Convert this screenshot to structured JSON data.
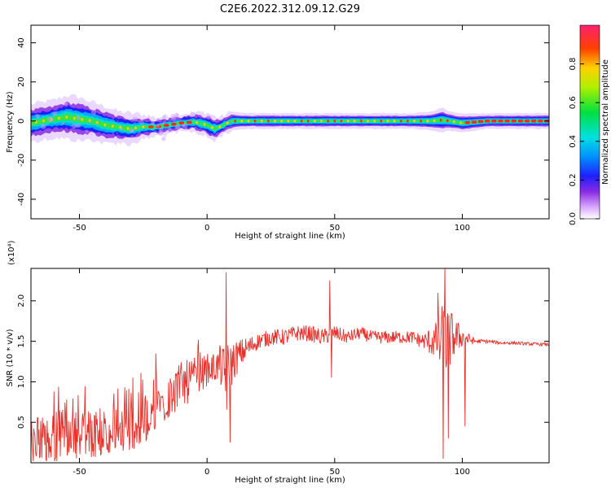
{
  "title": "C2E6.2022.312.09.12.G29",
  "chart_data": [
    {
      "type": "heatmap",
      "xlabel": "Height of straight line (km)",
      "ylabel": "Frequency (Hz)",
      "xlim": [
        -69,
        134
      ],
      "ylim": [
        -50,
        49
      ],
      "x_ticks": [
        -50,
        0,
        50,
        100
      ],
      "y_ticks": [
        40,
        20,
        0,
        -20,
        -40
      ],
      "x_tick_labels": [
        "-50",
        "0",
        "50",
        "100"
      ],
      "y_tick_labels": [
        "40",
        "20",
        "0",
        "-20",
        "-40"
      ],
      "colorbar": {
        "label": "Normalized spectral amplitude",
        "range": [
          0,
          1
        ],
        "ticks": [
          0.0,
          0.2,
          0.4,
          0.6,
          0.8
        ],
        "tick_labels": [
          "0.0",
          "0.2",
          "0.4",
          "0.6",
          "0.8"
        ]
      },
      "ridge": {
        "x": [
          -69,
          -60,
          -55,
          -50,
          -45,
          -40,
          -35,
          -30,
          -25,
          -20,
          -15,
          -10,
          -5,
          0,
          3,
          5,
          8,
          10,
          15,
          20,
          30,
          40,
          50,
          60,
          70,
          80,
          88,
          92,
          95,
          100,
          110,
          120,
          134
        ],
        "freq": [
          -1,
          1,
          2,
          1,
          0,
          -2,
          -3,
          -4,
          -3,
          -3,
          -2,
          -1,
          -0.5,
          -2,
          -4,
          -3,
          -1,
          0,
          0,
          0,
          0,
          0,
          0,
          0,
          0,
          0,
          0,
          0.5,
          0,
          -1,
          0,
          0,
          0
        ],
        "width": [
          6,
          6,
          7,
          7,
          6,
          6,
          5,
          5,
          4,
          3,
          3,
          3,
          3,
          4,
          4,
          3,
          3,
          3,
          2.5,
          2.5,
          2.5,
          2.5,
          2.5,
          2.5,
          2.5,
          2.5,
          3,
          4,
          3,
          3,
          2.5,
          2.5,
          2.5
        ]
      }
    },
    {
      "type": "line",
      "xlabel": "Height of straight line (km)",
      "ylabel": "SNR (10 * v/v)",
      "y_multiplier": "(x10⁴)",
      "xlim": [
        -69,
        134
      ],
      "ylim": [
        0,
        2.4
      ],
      "x_ticks": [
        -50,
        0,
        50,
        100
      ],
      "y_ticks": [
        0.5,
        1.0,
        1.5,
        2.0
      ],
      "x_tick_labels": [
        "-50",
        "0",
        "50",
        "100"
      ],
      "y_tick_labels": [
        "0.5",
        "1.0",
        "1.5",
        "2.0"
      ],
      "color": "#e8302a",
      "series": [
        {
          "x": [
            -69,
            -65,
            -60,
            -55,
            -50,
            -45,
            -40,
            -35,
            -30,
            -25,
            -20,
            -15,
            -10,
            -5,
            0,
            5,
            8,
            10,
            15,
            20,
            25,
            30,
            35,
            40,
            45,
            50,
            55,
            60,
            65,
            70,
            75,
            80,
            85,
            90,
            92,
            94,
            96,
            100,
            105,
            110,
            115,
            120,
            125,
            134
          ],
          "y": [
            0.25,
            0.3,
            0.3,
            0.35,
            0.35,
            0.35,
            0.4,
            0.45,
            0.45,
            0.5,
            0.7,
            0.8,
            0.95,
            1.05,
            1.15,
            1.2,
            1.0,
            1.25,
            1.4,
            1.5,
            1.55,
            1.55,
            1.6,
            1.6,
            1.55,
            1.6,
            1.55,
            1.6,
            1.55,
            1.55,
            1.55,
            1.55,
            1.5,
            1.5,
            1.45,
            1.5,
            1.55,
            1.55,
            1.5,
            1.5,
            1.48,
            1.48,
            1.47,
            1.46
          ],
          "noise": [
            0.3,
            0.3,
            0.35,
            0.3,
            0.3,
            0.3,
            0.3,
            0.3,
            0.3,
            0.3,
            0.3,
            0.3,
            0.3,
            0.25,
            0.2,
            0.2,
            0.5,
            0.25,
            0.15,
            0.1,
            0.1,
            0.1,
            0.1,
            0.1,
            0.1,
            0.1,
            0.08,
            0.08,
            0.08,
            0.08,
            0.08,
            0.08,
            0.1,
            0.25,
            0.5,
            0.5,
            0.3,
            0.12,
            0.03,
            0.02,
            0.02,
            0.02,
            0.02,
            0.02
          ]
        }
      ],
      "spikes": [
        {
          "x": -33,
          "y": 0.15
        },
        {
          "x": -29,
          "y": 1.05
        },
        {
          "x": -20,
          "y": 1.35
        },
        {
          "x": -10,
          "y": 1.1
        },
        {
          "x": 5,
          "y": 1.45
        },
        {
          "x": 7.5,
          "y": 2.35
        },
        {
          "x": 9,
          "y": 0.25
        },
        {
          "x": 48,
          "y": 2.25
        },
        {
          "x": 48.8,
          "y": 1.05
        },
        {
          "x": 90.5,
          "y": 2.1
        },
        {
          "x": 92.5,
          "y": 0.05
        },
        {
          "x": 93.2,
          "y": 2.4
        },
        {
          "x": 94.5,
          "y": 0.3
        },
        {
          "x": 101,
          "y": 0.45
        }
      ]
    }
  ]
}
